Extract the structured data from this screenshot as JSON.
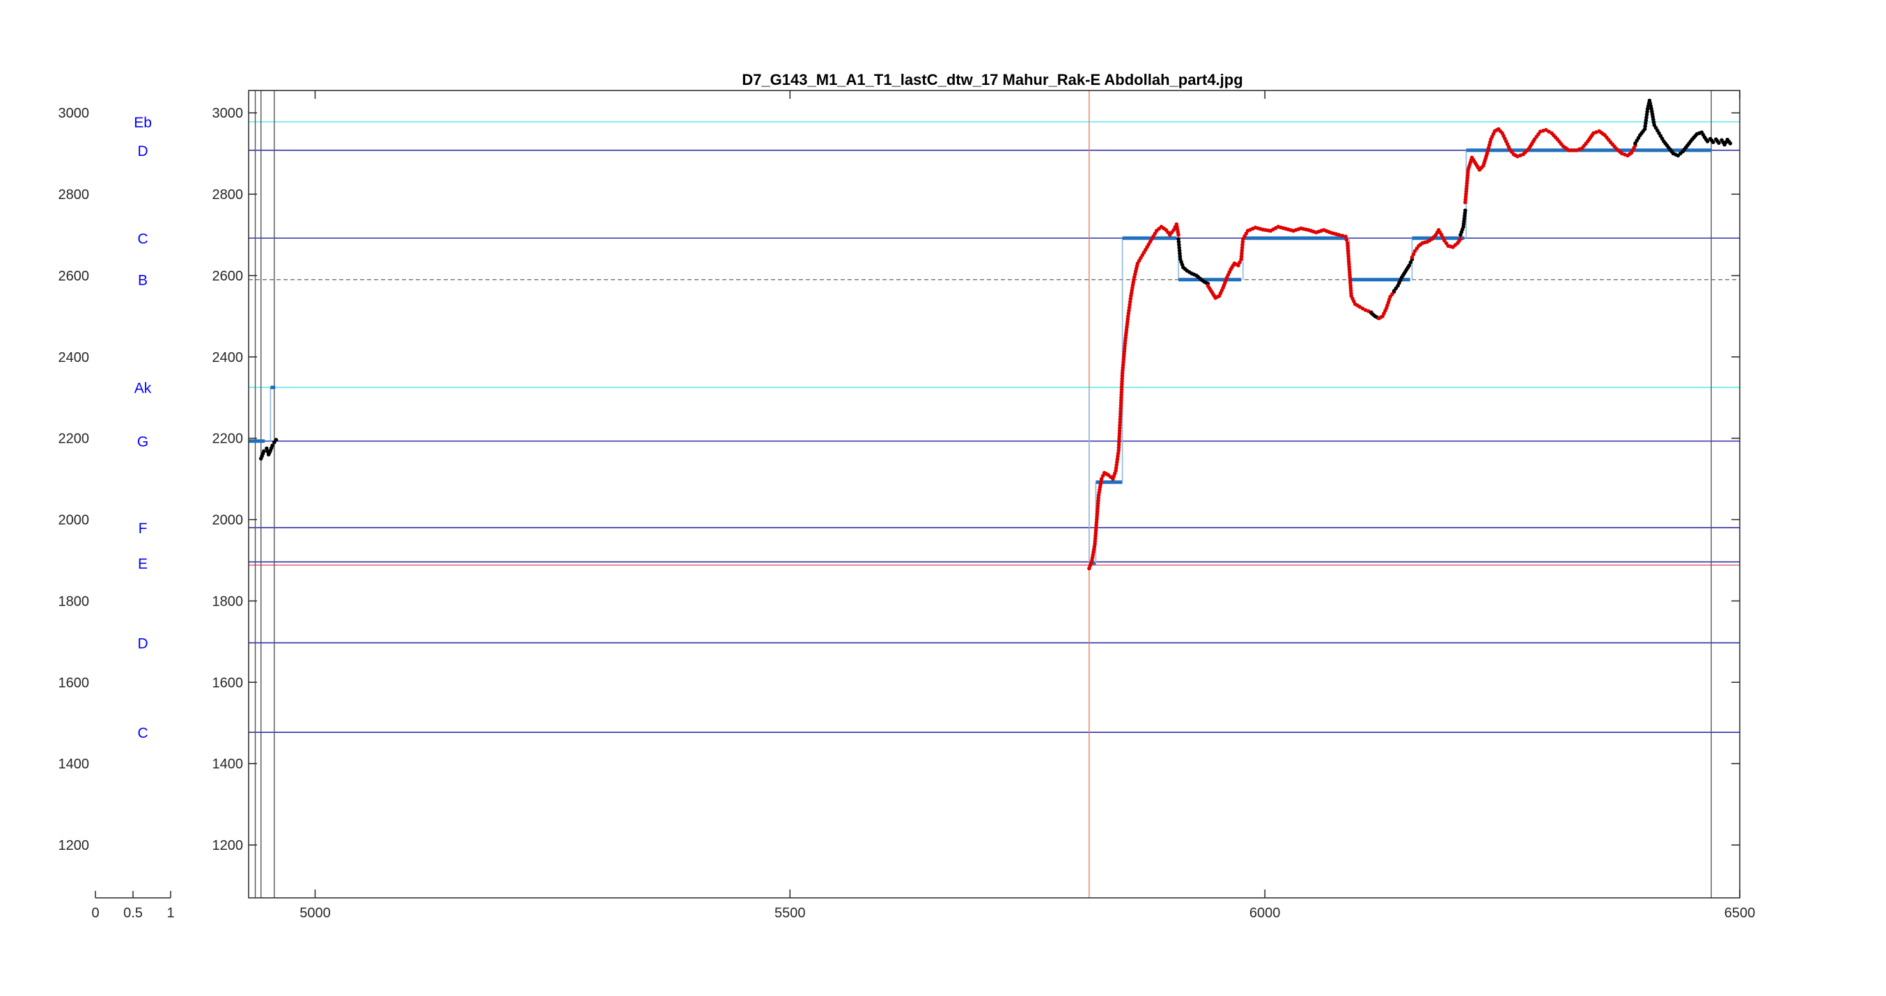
{
  "chart_data": {
    "type": "line",
    "title": "D7_G143_M1_A1_T1_lastC_dtw_17 Mahur_Rak-E Abdollah_part4.jpg",
    "xlabel": "",
    "ylabel": "",
    "xlim": [
      4930,
      6500
    ],
    "ylim": [
      1070,
      3055
    ],
    "x_ticks": [
      5000,
      5500,
      6000,
      6500
    ],
    "y_ticks": [
      1200,
      1400,
      1600,
      1800,
      2000,
      2200,
      2400,
      2600,
      2800,
      3000
    ],
    "grid": false,
    "side_axis": {
      "xlim": [
        0,
        1
      ],
      "x_ticks": [
        0,
        0.5,
        1
      ],
      "x_tick_labels": [
        "0",
        "0.5",
        "1"
      ]
    },
    "note_labels": [
      {
        "label": "Eb",
        "y": 2978
      },
      {
        "label": "D",
        "y": 2908
      },
      {
        "label": "C",
        "y": 2692
      },
      {
        "label": "B",
        "y": 2590
      },
      {
        "label": "Ak",
        "y": 2325
      },
      {
        "label": "G",
        "y": 2193
      },
      {
        "label": "F",
        "y": 1980
      },
      {
        "label": "E",
        "y": 1893
      },
      {
        "label": "D",
        "y": 1697
      },
      {
        "label": "C",
        "y": 1477
      }
    ],
    "reference_lines": [
      {
        "y": 2978,
        "color": "#5ee8e8"
      },
      {
        "y": 2908,
        "color": "#3030a8"
      },
      {
        "y": 2692,
        "color": "#3030a8"
      },
      {
        "y": 2590,
        "color": "#7a7a7a",
        "style": "dashed"
      },
      {
        "y": 2325,
        "color": "#5ee8e8"
      },
      {
        "y": 2193,
        "color": "#3030a8"
      },
      {
        "y": 1980,
        "color": "#3030a8"
      },
      {
        "y": 1896,
        "color": "#3030a8"
      },
      {
        "y": 1888,
        "color": "#e0707a"
      },
      {
        "y": 1697,
        "color": "#3030a8"
      },
      {
        "y": 1477,
        "color": "#3030a8"
      }
    ],
    "vertical_markers": [
      {
        "x": 4937,
        "color": "#555555"
      },
      {
        "x": 4943,
        "color": "#555555"
      },
      {
        "x": 4957,
        "color": "#555555"
      },
      {
        "x": 5815,
        "color": "#e08060"
      },
      {
        "x": 6470,
        "color": "#555555"
      }
    ],
    "segments": [
      {
        "x0": 4930,
        "x1": 4947,
        "y": 2193
      },
      {
        "x0": 4953,
        "x1": 4958,
        "y": 2325
      },
      {
        "x0": 5815,
        "x1": 5822,
        "y": 1893
      },
      {
        "x0": 5822,
        "x1": 5850,
        "y": 2092
      },
      {
        "x0": 5850,
        "x1": 5907,
        "y": 2692
      },
      {
        "x0": 5909,
        "x1": 5975,
        "y": 2590
      },
      {
        "x0": 5977,
        "x1": 6087,
        "y": 2692
      },
      {
        "x0": 6089,
        "x1": 6153,
        "y": 2590
      },
      {
        "x0": 6155,
        "x1": 6210,
        "y": 2692
      },
      {
        "x0": 6212,
        "x1": 6470,
        "y": 2908
      }
    ],
    "series": [
      {
        "color": "#000000",
        "points": [
          [
            4943,
            2150
          ],
          [
            4946,
            2168
          ],
          [
            4949,
            2175
          ],
          [
            4951,
            2160
          ],
          [
            4953,
            2170
          ],
          [
            4955,
            2182
          ],
          [
            4957,
            2190
          ],
          [
            4959,
            2196
          ]
        ]
      },
      {
        "color": "#e00000",
        "points": [
          [
            5815,
            1880
          ],
          [
            5818,
            1900
          ],
          [
            5821,
            1940
          ],
          [
            5823,
            2000
          ],
          [
            5825,
            2060
          ],
          [
            5828,
            2100
          ],
          [
            5831,
            2115
          ],
          [
            5835,
            2110
          ],
          [
            5840,
            2100
          ],
          [
            5843,
            2120
          ],
          [
            5846,
            2170
          ],
          [
            5848,
            2260
          ],
          [
            5850,
            2360
          ],
          [
            5853,
            2440
          ],
          [
            5856,
            2500
          ],
          [
            5859,
            2550
          ],
          [
            5862,
            2590
          ],
          [
            5866,
            2630
          ],
          [
            5871,
            2650
          ],
          [
            5876,
            2670
          ],
          [
            5881,
            2690
          ],
          [
            5886,
            2710
          ],
          [
            5891,
            2720
          ],
          [
            5896,
            2712
          ],
          [
            5900,
            2700
          ],
          [
            5904,
            2712
          ],
          [
            5907,
            2726
          ],
          [
            5909,
            2700
          ]
        ]
      },
      {
        "color": "#000000",
        "points": [
          [
            5909,
            2690
          ],
          [
            5911,
            2640
          ],
          [
            5914,
            2620
          ],
          [
            5918,
            2612
          ],
          [
            5923,
            2605
          ],
          [
            5928,
            2600
          ],
          [
            5932,
            2592
          ],
          [
            5936,
            2585
          ],
          [
            5940,
            2580
          ]
        ]
      },
      {
        "color": "#e00000",
        "points": [
          [
            5940,
            2575
          ],
          [
            5944,
            2560
          ],
          [
            5948,
            2545
          ],
          [
            5952,
            2550
          ],
          [
            5956,
            2570
          ],
          [
            5960,
            2595
          ],
          [
            5964,
            2615
          ],
          [
            5968,
            2630
          ],
          [
            5972,
            2625
          ],
          [
            5975,
            2640
          ],
          [
            5977,
            2690
          ],
          [
            5982,
            2710
          ],
          [
            5990,
            2718
          ],
          [
            5998,
            2713
          ],
          [
            6006,
            2710
          ],
          [
            6014,
            2720
          ],
          [
            6022,
            2715
          ],
          [
            6030,
            2710
          ],
          [
            6038,
            2716
          ],
          [
            6046,
            2712
          ],
          [
            6054,
            2706
          ],
          [
            6062,
            2712
          ],
          [
            6070,
            2705
          ],
          [
            6078,
            2700
          ],
          [
            6085,
            2696
          ],
          [
            6087,
            2680
          ],
          [
            6089,
            2615
          ],
          [
            6091,
            2550
          ],
          [
            6095,
            2530
          ],
          [
            6100,
            2523
          ],
          [
            6106,
            2515
          ],
          [
            6112,
            2510
          ]
        ]
      },
      {
        "color": "#000000",
        "points": [
          [
            6112,
            2508
          ],
          [
            6116,
            2500
          ],
          [
            6120,
            2495
          ]
        ]
      },
      {
        "color": "#e00000",
        "points": [
          [
            6120,
            2495
          ],
          [
            6124,
            2500
          ],
          [
            6128,
            2520
          ],
          [
            6132,
            2548
          ],
          [
            6136,
            2560
          ]
        ]
      },
      {
        "color": "#000000",
        "points": [
          [
            6136,
            2562
          ],
          [
            6140,
            2575
          ],
          [
            6144,
            2595
          ],
          [
            6148,
            2610
          ],
          [
            6152,
            2625
          ],
          [
            6155,
            2640
          ]
        ]
      },
      {
        "color": "#e00000",
        "points": [
          [
            6155,
            2645
          ],
          [
            6158,
            2660
          ],
          [
            6162,
            2673
          ],
          [
            6166,
            2680
          ],
          [
            6171,
            2683
          ],
          [
            6176,
            2690
          ],
          [
            6180,
            2700
          ],
          [
            6183,
            2712
          ],
          [
            6186,
            2700
          ],
          [
            6189,
            2686
          ],
          [
            6193,
            2673
          ],
          [
            6198,
            2670
          ],
          [
            6203,
            2680
          ],
          [
            6206,
            2690
          ]
        ]
      },
      {
        "color": "#000000",
        "points": [
          [
            6206,
            2700
          ],
          [
            6209,
            2720
          ],
          [
            6211,
            2760
          ]
        ]
      },
      {
        "color": "#e00000",
        "points": [
          [
            6211,
            2780
          ],
          [
            6214,
            2860
          ],
          [
            6218,
            2890
          ],
          [
            6222,
            2875
          ],
          [
            6226,
            2860
          ],
          [
            6230,
            2870
          ],
          [
            6234,
            2900
          ],
          [
            6238,
            2935
          ],
          [
            6242,
            2955
          ],
          [
            6246,
            2960
          ],
          [
            6250,
            2950
          ],
          [
            6254,
            2930
          ],
          [
            6258,
            2910
          ],
          [
            6262,
            2898
          ],
          [
            6266,
            2893
          ],
          [
            6272,
            2898
          ],
          [
            6278,
            2912
          ],
          [
            6284,
            2935
          ],
          [
            6290,
            2954
          ],
          [
            6296,
            2958
          ],
          [
            6302,
            2950
          ],
          [
            6308,
            2935
          ],
          [
            6314,
            2918
          ],
          [
            6320,
            2908
          ],
          [
            6328,
            2908
          ],
          [
            6334,
            2913
          ],
          [
            6340,
            2930
          ],
          [
            6346,
            2950
          ],
          [
            6352,
            2955
          ],
          [
            6358,
            2945
          ],
          [
            6364,
            2928
          ],
          [
            6370,
            2912
          ],
          [
            6376,
            2900
          ],
          [
            6382,
            2895
          ],
          [
            6386,
            2902
          ],
          [
            6390,
            2920
          ]
        ]
      },
      {
        "color": "#000000",
        "points": [
          [
            6390,
            2925
          ],
          [
            6395,
            2945
          ],
          [
            6400,
            2960
          ],
          [
            6403,
            3010
          ],
          [
            6405,
            3030
          ],
          [
            6407,
            3010
          ],
          [
            6410,
            2970
          ],
          [
            6415,
            2950
          ],
          [
            6420,
            2930
          ],
          [
            6425,
            2915
          ],
          [
            6430,
            2900
          ],
          [
            6435,
            2895
          ],
          [
            6440,
            2905
          ],
          [
            6445,
            2920
          ],
          [
            6450,
            2935
          ],
          [
            6455,
            2948
          ],
          [
            6460,
            2952
          ],
          [
            6463,
            2940
          ],
          [
            6466,
            2930
          ],
          [
            6469,
            2936
          ],
          [
            6472,
            2928
          ],
          [
            6475,
            2935
          ],
          [
            6478,
            2926
          ],
          [
            6481,
            2933
          ],
          [
            6484,
            2922
          ],
          [
            6487,
            2934
          ],
          [
            6490,
            2925
          ]
        ]
      }
    ]
  }
}
